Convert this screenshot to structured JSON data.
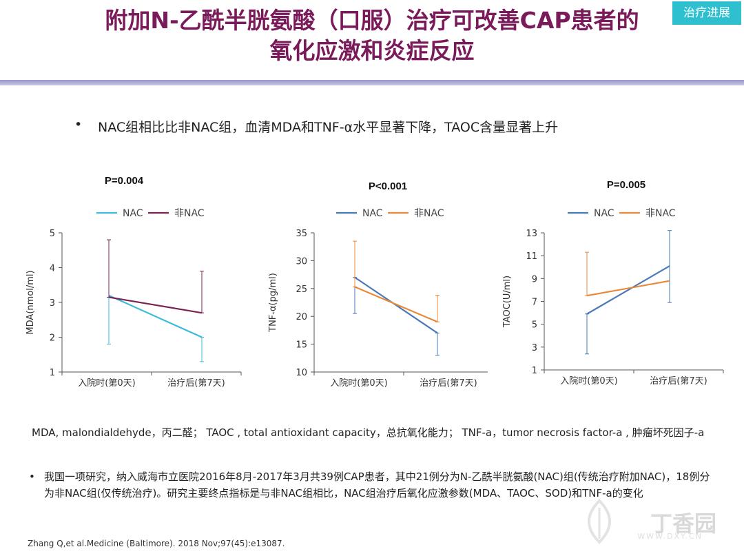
{
  "header": {
    "title_line1": "附加N-乙酰半胱氨酸（口服）治疗可改善CAP患者的",
    "title_line2": "氧化应激和炎症反应",
    "tag": "治疗进展"
  },
  "summary": {
    "bullet": "•",
    "text": "NAC组相比比非NAC组，血清MDA和TNF-α水平显著下降，TAOC含量显著上升"
  },
  "charts": [
    {
      "p_value": "P=0.004"
    },
    {
      "p_value": "P<0.001"
    },
    {
      "p_value": "P=0.005"
    }
  ],
  "chart_data": [
    {
      "type": "line",
      "title": "P=0.004",
      "ylabel": "MDA(nmol/ml)",
      "xlabel": "",
      "categories": [
        "入院时(第0天)",
        "治疗后(第7天)"
      ],
      "ylim": [
        1,
        5
      ],
      "yticks": [
        1,
        2,
        3,
        4,
        5
      ],
      "series": [
        {
          "name": "NAC",
          "color": "#3cbcd8",
          "values": [
            3.2,
            2.0
          ],
          "err_low": [
            1.8,
            1.3
          ],
          "err_high": [
            4.8,
            2.0
          ]
        },
        {
          "name": "非NAC",
          "color": "#7a2456",
          "values": [
            3.15,
            2.7
          ],
          "err_low": [
            3.15,
            2.7
          ],
          "err_high": [
            4.8,
            3.9
          ]
        }
      ]
    },
    {
      "type": "line",
      "title": "P<0.001",
      "ylabel": "TNF-α(pg/ml)",
      "xlabel": "",
      "categories": [
        "入院时(第0天)",
        "治疗后(第7天)"
      ],
      "ylim": [
        10,
        35
      ],
      "yticks": [
        10,
        15,
        20,
        25,
        30,
        35
      ],
      "series": [
        {
          "name": "NAC",
          "color": "#4a78b8",
          "values": [
            27,
            17
          ],
          "err_low": [
            20.5,
            13
          ],
          "err_high": [
            27,
            17
          ]
        },
        {
          "name": "非NAC",
          "color": "#e8893a",
          "values": [
            25.3,
            19
          ],
          "err_low": [
            25.3,
            19
          ],
          "err_high": [
            33.5,
            23.8
          ]
        }
      ]
    },
    {
      "type": "line",
      "title": "P=0.005",
      "ylabel": "TAOC(U/ml)",
      "xlabel": "",
      "categories": [
        "入院时(第0天)",
        "治疗后(第7天)"
      ],
      "ylim": [
        1,
        13
      ],
      "yticks": [
        1,
        3,
        5,
        7,
        9,
        11,
        13
      ],
      "series": [
        {
          "name": "NAC",
          "color": "#4a78b8",
          "values": [
            5.9,
            10.1
          ],
          "err_low": [
            2.4,
            6.9
          ],
          "err_high": [
            5.9,
            13.2
          ]
        },
        {
          "name": "非NAC",
          "color": "#e8893a",
          "values": [
            7.5,
            8.8
          ],
          "err_low": [
            7.5,
            8.8
          ],
          "err_high": [
            11.3,
            8.8
          ]
        }
      ]
    }
  ],
  "abbreviations": "MDA,  malondialdehyde，丙二醛；  TAOC , total antioxidant capacity，总抗氧化能力；  TNF-a，tumor necrosis factor-a , 肿瘤坏死因子-a",
  "study": {
    "bullet": "•",
    "text": "我国一项研究，纳入威海市立医院2016年8月-2017年3月共39例CAP患者，其中21例分为N-乙酰半胱氨酸(NAC)组(传统治疗附加NAC)，18例分为非NAC组(仅传统治疗)。研究主要终点指标是与非NAC组相比，NAC组治疗后氧化应激参数(MDA、TAOC、SOD)和TNF-a的变化"
  },
  "reference": "Zhang Q,et al.Medicine (Baltimore). 2018 Nov;97(45):e13087.",
  "watermark": {
    "text": "丁香园",
    "sub": "WWW.DXY.CN"
  }
}
